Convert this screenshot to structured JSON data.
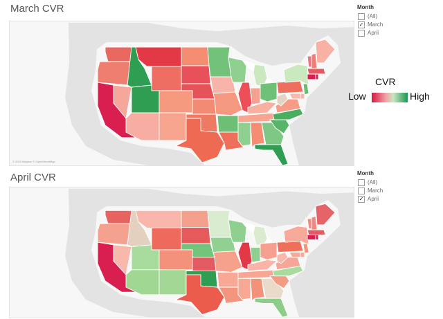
{
  "charts": [
    {
      "title": "March CVR",
      "attribution": "© 2020 Mapbox © OpenStreetMap",
      "filter": {
        "title": "Month",
        "options": [
          {
            "label": "(All)",
            "checked": false
          },
          {
            "label": "March",
            "checked": true
          },
          {
            "label": "April",
            "checked": false
          }
        ]
      },
      "state_colors": {
        "WA": "#e8675e",
        "OR": "#ee7e6f",
        "CA": "#d81f4f",
        "NV": "#f6a79c",
        "ID": "#2f9d52",
        "MT": "#e33846",
        "WY": "#ee6f61",
        "UT": "#2f9d52",
        "AZ": "#f7ada1",
        "CO": "#f5997f",
        "NM": "#f7a48f",
        "ND": "#f58d73",
        "SD": "#e8505a",
        "NE": "#e55258",
        "KS": "#f38a73",
        "OK": "#ef7a63",
        "TX": "#ee6a52",
        "MN": "#72c27a",
        "IA": "#f8b4a9",
        "MO": "#f4987f",
        "AR": "#6ebf76",
        "LA": "#ee6f5a",
        "WI": "#8fd091",
        "IL": "#ec4f57",
        "MI": "#cbe9bf",
        "IN": "#f6a08f",
        "OH": "#70c178",
        "KY": "#f8b0a0",
        "TN": "#f7a490",
        "MS": "#8fd091",
        "AL": "#f58d73",
        "GA": "#7ec785",
        "FL": "#2f9d52",
        "SC": "#58b468",
        "NC": "#4aae60",
        "VA": "#f59b86",
        "WV": "#e4d3c2",
        "PA": "#ef6f5e",
        "NY": "#cbe9bf",
        "VT": "#e9757f",
        "NH": "#ef7d78",
        "ME": "#f8b1a4",
        "MA": "#e35a63",
        "CT": "#d81f4f",
        "RI": "#d81f4f",
        "NJ": "#69bc73",
        "DE": "#f8b3a6",
        "MD": "#f8b8ac"
      }
    },
    {
      "title": "April CVR",
      "attribution": "",
      "filter": {
        "title": "Month",
        "options": [
          {
            "label": "(All)",
            "checked": false
          },
          {
            "label": "March",
            "checked": false
          },
          {
            "label": "April",
            "checked": true
          }
        ]
      },
      "state_colors": {
        "WA": "#e66360",
        "OR": "#f5a18f",
        "CA": "#d81f4f",
        "NV": "#f8b8ac",
        "ID": "#e4d0bf",
        "MT": "#f8b7aa",
        "WY": "#ed6a5d",
        "UT": "#a8dc9c",
        "AZ": "#9fd793",
        "CO": "#f3917b",
        "NM": "#a2d796",
        "ND": "#f4a08d",
        "SD": "#e65a5b",
        "NE": "#75c47b",
        "KS": "#e35a63",
        "OK": "#2f9d52",
        "TX": "#ec5c4d",
        "MN": "#d9ecd0",
        "IA": "#90d090",
        "MO": "#f5a18c",
        "AR": "#f7a896",
        "LA": "#f4967f",
        "WI": "#8fd091",
        "IL": "#e33846",
        "MI": "#d9ecd0",
        "IN": "#8fd091",
        "OH": "#f6a08f",
        "KY": "#f8b4a6",
        "TN": "#f7a791",
        "MS": "#f7a996",
        "AL": "#f3917a",
        "GA": "#e9dac9",
        "FL": "#8ccd89",
        "SC": "#f39b85",
        "NC": "#a8dc9c",
        "VA": "#f6a596",
        "WV": "#f8b8ac",
        "PA": "#ee6f5a",
        "NY": "#f7aa9a",
        "VT": "#f08a80",
        "NH": "#f08a80",
        "ME": "#e5646a",
        "MA": "#e35a63",
        "CT": "#d81f4f",
        "RI": "#d81f4f",
        "NJ": "#f4957f",
        "DE": "#f7a896",
        "MD": "#f7a896"
      }
    }
  ],
  "legend": {
    "title": "CVR",
    "low_label": "Low",
    "high_label": "High",
    "low_color": "#d7193f",
    "high_color": "#1a9650"
  }
}
